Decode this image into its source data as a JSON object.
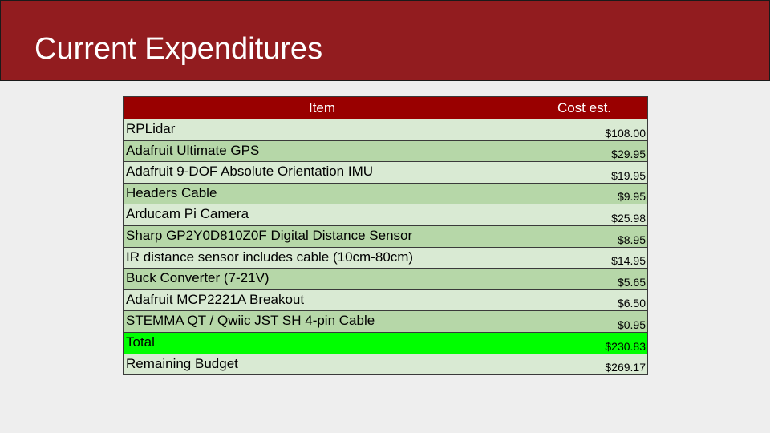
{
  "slide": {
    "title": "Current Expenditures"
  },
  "table": {
    "headers": {
      "item": "Item",
      "cost": "Cost est."
    },
    "rows": [
      {
        "item": "RPLidar",
        "cost": "$108.00"
      },
      {
        "item": "Adafruit Ultimate GPS",
        "cost": "$29.95"
      },
      {
        "item": "Adafruit 9-DOF Absolute Orientation IMU",
        "cost": "$19.95"
      },
      {
        "item": "Headers Cable",
        "cost": "$9.95"
      },
      {
        "item": "Arducam Pi Camera",
        "cost": "$25.98"
      },
      {
        "item": "Sharp GP2Y0D810Z0F Digital Distance Sensor",
        "cost": "$8.95"
      },
      {
        "item": "IR distance sensor includes cable (10cm-80cm)",
        "cost": "$14.95"
      },
      {
        "item": "Buck Converter (7-21V)",
        "cost": "$5.65"
      },
      {
        "item": "Adafruit MCP2221A Breakout",
        "cost": "$6.50"
      },
      {
        "item": "STEMMA QT / Qwiic JST SH 4-pin Cable",
        "cost": "$0.95"
      }
    ],
    "total": {
      "item": "Total",
      "cost": "$230.83"
    },
    "remaining": {
      "item": "Remaining Budget",
      "cost": "$269.17"
    }
  },
  "colors": {
    "title_bar": "#921c1f",
    "header_row": "#990000",
    "row_light": "#d9ead3",
    "row_medium": "#b6d7a8",
    "total_row": "#00ff00",
    "background": "#eeeeee"
  }
}
